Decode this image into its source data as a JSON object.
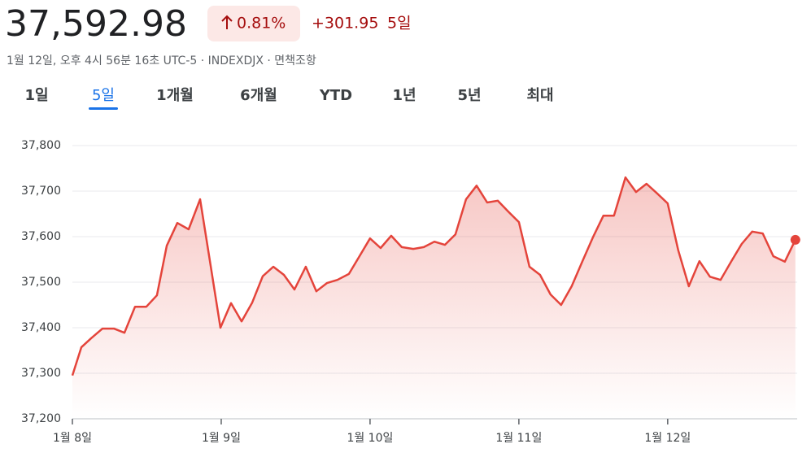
{
  "header": {
    "price": "37,592.98",
    "change_percent": "0.81%",
    "change": "+301.95",
    "period": "5일",
    "subtitle": "1월 12일, 오후 4시 56분 16초 UTC-5 · INDEXDJX · 면책조항",
    "tabs": [
      "1일",
      "5일",
      "1개월",
      "6개월",
      "YTD",
      "1년",
      "5년",
      "최대"
    ],
    "selected_tab": 1
  },
  "chart_data": {
    "type": "area",
    "color": "#e4443b",
    "grid": true,
    "x": [
      0,
      0.06,
      0.126,
      0.202,
      0.279,
      0.35,
      0.421,
      0.497,
      0.568,
      0.634,
      0.705,
      0.781,
      0.858,
      0.923,
      0.995,
      1.066,
      1.137,
      1.208,
      1.279,
      1.35,
      1.421,
      1.492,
      1.568,
      1.639,
      1.71,
      1.781,
      1.858,
      1.929,
      2,
      2.071,
      2.142,
      2.213,
      2.29,
      2.361,
      2.432,
      2.503,
      2.574,
      2.645,
      2.716,
      2.787,
      2.858,
      2.929,
      3,
      3.071,
      3.142,
      3.213,
      3.284,
      3.355,
      3.426,
      3.497,
      3.568,
      3.639,
      3.716,
      3.787,
      3.858,
      3.929,
      4,
      4.071,
      4.142,
      4.213,
      4.284,
      4.355,
      4.426,
      4.497,
      4.568,
      4.639,
      4.71,
      4.787,
      4.858
    ],
    "values": [
      37295,
      37357,
      37377,
      37398,
      37398,
      37389,
      37446,
      37446,
      37471,
      37580,
      37630,
      37616,
      37682,
      37548,
      37400,
      37454,
      37414,
      37455,
      37513,
      37534,
      37516,
      37484,
      37534,
      37480,
      37498,
      37505,
      37518,
      37557,
      37596,
      37575,
      37602,
      37577,
      37573,
      37577,
      37589,
      37582,
      37605,
      37682,
      37712,
      37675,
      37679,
      37655,
      37632,
      37534,
      37516,
      37473,
      37450,
      37491,
      37545,
      37598,
      37646,
      37646,
      37730,
      37698,
      37716,
      37695,
      37673,
      37570,
      37491,
      37546,
      37512,
      37505,
      37545,
      37584,
      37611,
      37607,
      37557,
      37545,
      37592.98
    ],
    "xlim": [
      0,
      4.87
    ],
    "xticks": [
      {
        "value": 0,
        "label": "1월 8일"
      },
      {
        "value": 1,
        "label": "1월 9일"
      },
      {
        "value": 2,
        "label": "1월 10일"
      },
      {
        "value": 3,
        "label": "1월 11일"
      },
      {
        "value": 4,
        "label": "1월 12일"
      }
    ],
    "ylim": [
      37200,
      37800
    ],
    "yticks": [
      {
        "value": 37200,
        "label": "37,200"
      },
      {
        "value": 37300,
        "label": "37,300"
      },
      {
        "value": 37400,
        "label": "37,400"
      },
      {
        "value": 37500,
        "label": "37,500"
      },
      {
        "value": 37600,
        "label": "37,600"
      },
      {
        "value": 37700,
        "label": "37,700"
      },
      {
        "value": 37800,
        "label": "37,800"
      }
    ]
  }
}
